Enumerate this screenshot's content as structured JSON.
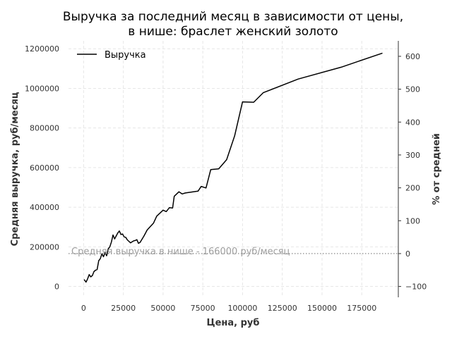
{
  "chart_data": {
    "type": "line",
    "title_lines": [
      "Выручка за последний месяц в зависимости от цены,",
      "в нише: браслет женский золото"
    ],
    "xlabel": "Цена, руб",
    "ylabel": "Средняя выручка, руб/месяц",
    "y2label": "% от средней",
    "xlim": [
      -9500,
      198000
    ],
    "ylim": [
      -55000,
      1240000
    ],
    "y2lim": [
      -133,
      647
    ],
    "x_ticks": [
      0,
      25000,
      50000,
      75000,
      100000,
      125000,
      150000,
      175000
    ],
    "x_tick_labels": [
      "0",
      "25000",
      "50000",
      "75000",
      "100000",
      "125000",
      "150000",
      "175000"
    ],
    "y_ticks": [
      0,
      200000,
      400000,
      600000,
      800000,
      1000000,
      1200000
    ],
    "y_tick_labels": [
      "0",
      "200000",
      "400000",
      "600000",
      "800000",
      "1000000",
      "1200000"
    ],
    "y2_ticks": [
      -100,
      0,
      100,
      200,
      300,
      400,
      500,
      600
    ],
    "y2_tick_labels": [
      "−100",
      "0",
      "100",
      "200",
      "300",
      "400",
      "500",
      "600"
    ],
    "grid": true,
    "legend_position": "top-left",
    "series": [
      {
        "name": "Выручка",
        "color": "#000000",
        "x": [
          300,
          1500,
          2500,
          3500,
          4500,
          5500,
          6500,
          7500,
          8500,
          9500,
          10500,
          11500,
          12500,
          13500,
          14500,
          15500,
          16500,
          17500,
          18500,
          19500,
          20500,
          21500,
          22500,
          23500,
          24500,
          25500,
          26500,
          27500,
          28500,
          29500,
          30500,
          31500,
          32500,
          33500,
          34500,
          35500,
          38000,
          40000,
          44000,
          46000,
          50000,
          52000,
          54000,
          56000,
          57000,
          60000,
          62000,
          64000,
          72000,
          74000,
          77000,
          80000,
          85000,
          90000,
          95000,
          100000,
          107000,
          113000,
          135000,
          162000,
          188000
        ],
        "values": [
          35000,
          22000,
          38000,
          60000,
          48000,
          55000,
          75000,
          82000,
          85000,
          130000,
          140000,
          165000,
          150000,
          170000,
          155000,
          190000,
          200000,
          225000,
          260000,
          240000,
          255000,
          270000,
          280000,
          262000,
          265000,
          250000,
          248000,
          235000,
          228000,
          220000,
          225000,
          230000,
          232000,
          236000,
          218000,
          222000,
          255000,
          285000,
          320000,
          355000,
          385000,
          378000,
          398000,
          396000,
          455000,
          478000,
          467000,
          472000,
          481000,
          505000,
          497000,
          590000,
          594000,
          640000,
          760000,
          932000,
          930000,
          978000,
          1047000,
          1107000,
          1178000
        ]
      }
    ],
    "reference_line": {
      "value": 166000,
      "label": "Средняя выручка в нише - 166000 руб/месяц",
      "color": "#9e9e9e"
    }
  }
}
